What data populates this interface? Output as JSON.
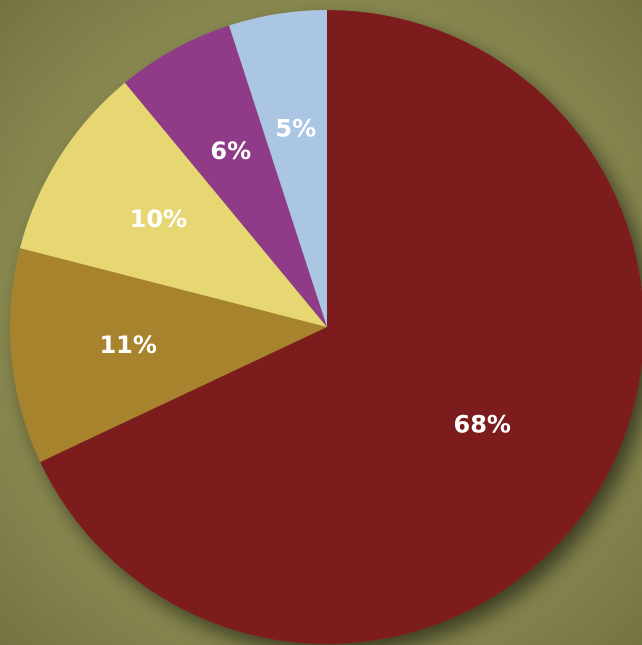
{
  "chart_data": {
    "type": "pie",
    "values": [
      68,
      11,
      10,
      6,
      5
    ],
    "value_labels": [
      "68%",
      "11%",
      "10%",
      "6%",
      "5%"
    ],
    "colors": [
      "#7b1d1e",
      "#a8832f",
      "#e7d773",
      "#8f3a87",
      "#aac6e3"
    ],
    "start_angle": 90,
    "direction": "clockwise"
  }
}
